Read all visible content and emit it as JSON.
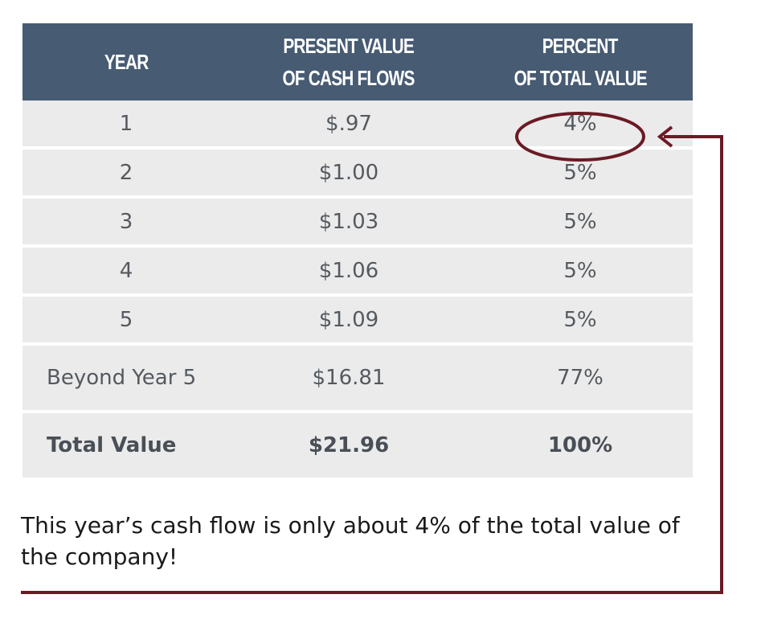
{
  "table": {
    "headers": {
      "year": "YEAR",
      "pv_line1": "PRESENT VALUE",
      "pv_line2": "OF CASH FLOWS",
      "pct_line1": "PERCENT",
      "pct_line2": "OF TOTAL VALUE"
    },
    "rows": [
      {
        "year": "1",
        "pv": "$.97",
        "pct": "4%"
      },
      {
        "year": "2",
        "pv": "$1.00",
        "pct": "5%"
      },
      {
        "year": "3",
        "pv": "$1.03",
        "pct": "5%"
      },
      {
        "year": "4",
        "pv": "$1.06",
        "pct": "5%"
      },
      {
        "year": "5",
        "pv": "$1.09",
        "pct": "5%"
      }
    ],
    "beyond": {
      "year": "Beyond Year 5",
      "pv": "$16.81",
      "pct": "77%"
    },
    "total": {
      "year": "Total Value",
      "pv": "$21.96",
      "pct": "100%"
    }
  },
  "caption": "This year’s cash flow is only about 4% of the total value of the company!",
  "colors": {
    "header_bg": "#475b73",
    "row_bg": "#ebebeb",
    "annotation": "#6b1a24"
  }
}
